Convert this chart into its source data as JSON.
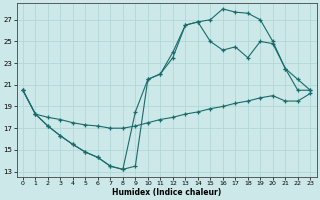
{
  "xlabel": "Humidex (Indice chaleur)",
  "bg_color": "#cce8e8",
  "line_color": "#1a6b6b",
  "grid_color": "#b0d8d8",
  "xlim": [
    -0.5,
    23.5
  ],
  "ylim": [
    12.5,
    28.5
  ],
  "xticks": [
    0,
    1,
    2,
    3,
    4,
    5,
    6,
    7,
    8,
    9,
    10,
    11,
    12,
    13,
    14,
    15,
    16,
    17,
    18,
    19,
    20,
    21,
    22,
    23
  ],
  "yticks": [
    13,
    15,
    17,
    19,
    21,
    23,
    25,
    27
  ],
  "line1_x": [
    0,
    1,
    2,
    3,
    4,
    5,
    6,
    7,
    8,
    9,
    10,
    11,
    12,
    13,
    14,
    15,
    16,
    17,
    18,
    19,
    20,
    21,
    22,
    23
  ],
  "line1_y": [
    20.5,
    18.3,
    17.2,
    16.3,
    15.5,
    14.8,
    14.3,
    13.5,
    13.2,
    13.5,
    21.5,
    22.0,
    23.5,
    26.5,
    26.8,
    27.0,
    28.0,
    27.7,
    27.6,
    27.0,
    25.0,
    22.5,
    21.5,
    20.5
  ],
  "line2_x": [
    0,
    1,
    2,
    3,
    4,
    5,
    6,
    7,
    8,
    9,
    10,
    11,
    12,
    13,
    14,
    15,
    16,
    17,
    18,
    19,
    20,
    21,
    22,
    23
  ],
  "line2_y": [
    20.5,
    18.3,
    17.2,
    16.3,
    15.5,
    14.8,
    14.3,
    13.5,
    13.2,
    18.5,
    21.5,
    22.0,
    24.0,
    26.5,
    26.8,
    25.0,
    24.2,
    24.5,
    23.5,
    25.0,
    24.8,
    22.5,
    20.5,
    20.5
  ],
  "line3_x": [
    0,
    1,
    2,
    3,
    4,
    5,
    6,
    7,
    8,
    9,
    10,
    11,
    12,
    13,
    14,
    15,
    16,
    17,
    18,
    19,
    20,
    21,
    22,
    23
  ],
  "line3_y": [
    20.5,
    18.3,
    18.0,
    17.8,
    17.5,
    17.3,
    17.2,
    17.0,
    17.0,
    17.2,
    17.5,
    17.8,
    18.0,
    18.3,
    18.5,
    18.8,
    19.0,
    19.3,
    19.5,
    19.8,
    20.0,
    19.5,
    19.5,
    20.2
  ]
}
